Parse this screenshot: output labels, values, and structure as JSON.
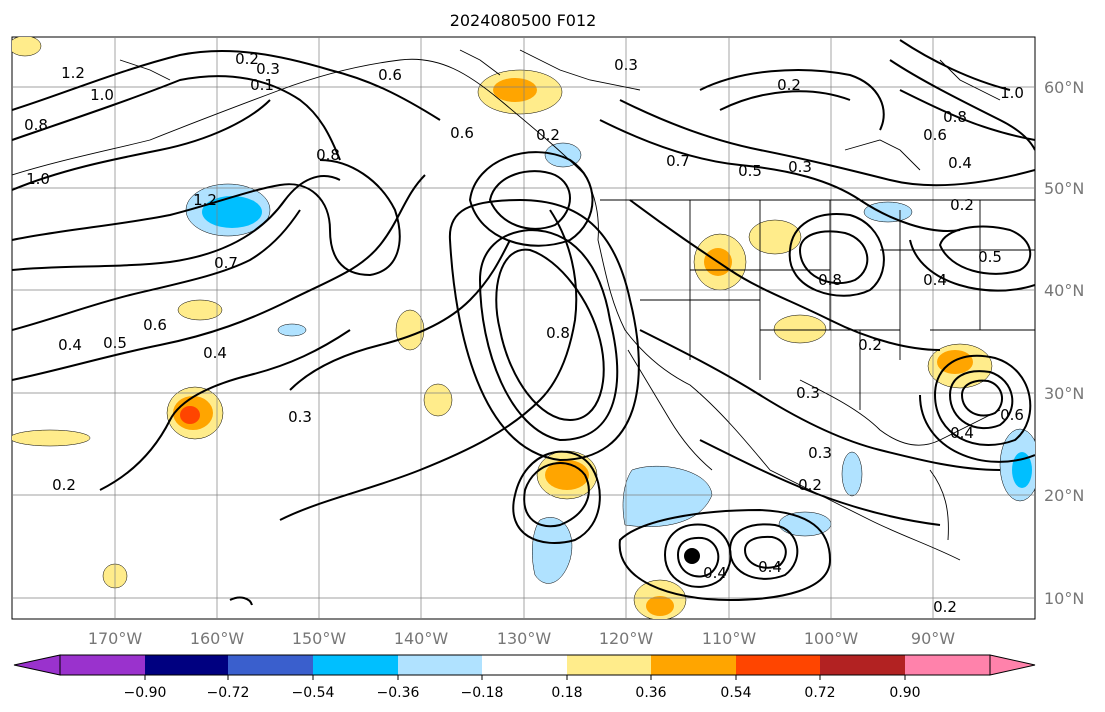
{
  "title": "2024080500 F012",
  "map": {
    "lon_labels": [
      "170°W",
      "160°W",
      "150°W",
      "140°W",
      "130°W",
      "120°W",
      "110°W",
      "100°W",
      "90°W"
    ],
    "lat_labels": [
      "60°N",
      "50°N",
      "40°N",
      "30°N",
      "20°N",
      "10°N"
    ],
    "contour_labels": [
      "1.2",
      "1.0",
      "0.8",
      "1.0",
      "0.2",
      "0.3",
      "0.1",
      "0.6",
      "0.3",
      "0.2",
      "0.8",
      "0.6",
      "0.4",
      "1.0",
      "0.6",
      "0.7",
      "0.5",
      "0.3",
      "0.8",
      "1.2",
      "0.2",
      "0.7",
      "0.6",
      "0.5",
      "0.4",
      "0.4",
      "0.3",
      "0.8",
      "0.8",
      "0.4",
      "0.2",
      "0.3",
      "0.3",
      "0.2",
      "0.4",
      "0.6",
      "0.2",
      "0.4",
      "0.4",
      "0.5",
      "0.2",
      "0.2"
    ],
    "colors": {
      "land_line": "#000000",
      "grid": "#808080",
      "contour": "#000000"
    }
  },
  "colorbar": {
    "ticks": [
      "−0.90",
      "−0.72",
      "−0.54",
      "−0.36",
      "−0.18",
      "0.18",
      "0.36",
      "0.54",
      "0.72",
      "0.90"
    ],
    "colors": [
      "#9a32cd",
      "#000080",
      "#3a5fcd",
      "#00bfff",
      "#b0e2ff",
      "#ffffff",
      "#ffec8b",
      "#ffa500",
      "#ff4500",
      "#b22222",
      "#ff82ab"
    ]
  }
}
